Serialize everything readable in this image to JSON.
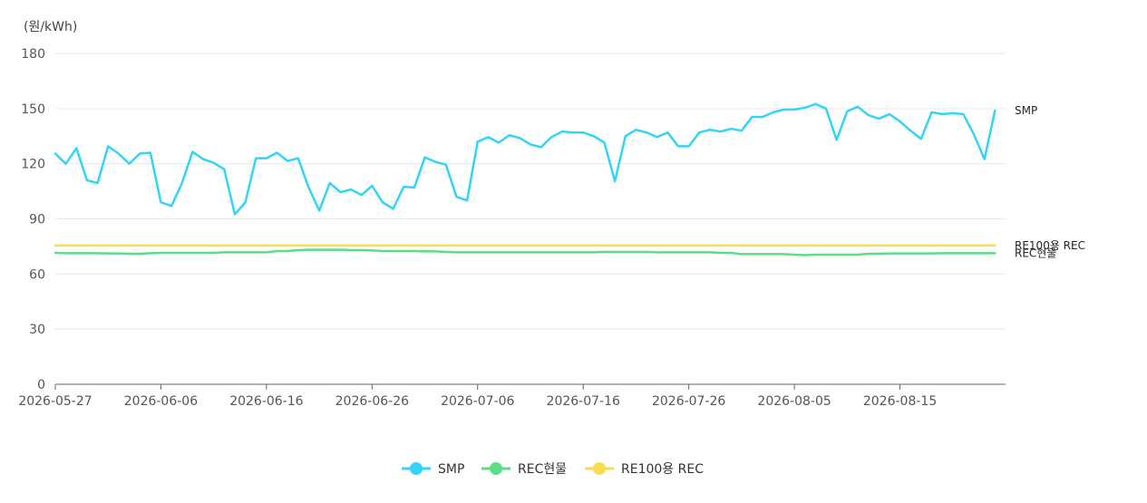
{
  "chart_data": {
    "type": "line",
    "y_unit_label": "(원/kWh)",
    "ylim": [
      0,
      180
    ],
    "y_ticks": [
      0,
      30,
      60,
      90,
      120,
      150,
      180
    ],
    "x_start": "2026-05-27",
    "x_end": "2026-08-25",
    "x_tick_labels": [
      "2026-05-27",
      "2026-06-06",
      "2026-06-16",
      "2026-06-26",
      "2026-07-06",
      "2026-07-16",
      "2026-07-26",
      "2026-08-05",
      "2026-08-15"
    ],
    "grid": "horizontal",
    "legend_position": "bottom",
    "series": [
      {
        "name": "SMP",
        "color": "#33d4f5",
        "end_label": "SMP",
        "values": [
          125.5,
          120,
          128.5,
          111,
          109.5,
          129.5,
          125.5,
          120,
          125.5,
          126,
          99,
          97,
          109.5,
          126.5,
          122.5,
          120.5,
          117,
          92.5,
          99,
          123,
          123,
          126,
          121.5,
          123,
          107,
          94.5,
          109.5,
          104.5,
          106,
          103,
          108,
          99,
          95.5,
          107.5,
          107,
          123.5,
          121,
          119.5,
          102,
          100,
          132,
          134.5,
          131.5,
          135.5,
          134,
          130.5,
          129,
          134.5,
          137.5,
          137,
          137,
          135,
          131.5,
          110.5,
          135,
          138.5,
          137,
          134.5,
          137,
          129.5,
          129.5,
          137,
          138.5,
          137.5,
          139,
          138,
          145.5,
          145.5,
          148,
          149.5,
          149.5,
          150.5,
          152.5,
          150,
          133,
          148.5,
          151,
          146.5,
          144.5,
          147,
          143,
          138,
          133.5,
          148,
          147,
          147.5,
          147,
          136,
          122.5,
          149
        ]
      },
      {
        "name": "REC현물",
        "color": "#5ddd84",
        "end_label": "REC현물",
        "values": [
          71.5,
          71.3,
          71.3,
          71.3,
          71.3,
          71.2,
          71.2,
          71,
          71,
          71.3,
          71.5,
          71.5,
          71.5,
          71.5,
          71.5,
          71.5,
          71.8,
          71.8,
          71.8,
          71.8,
          71.8,
          72.5,
          72.5,
          73,
          73.2,
          73.2,
          73.2,
          73.2,
          73,
          73,
          72.8,
          72.5,
          72.5,
          72.5,
          72.5,
          72.3,
          72.3,
          72,
          71.8,
          71.8,
          71.8,
          71.8,
          71.8,
          71.8,
          71.8,
          71.8,
          71.8,
          71.8,
          71.8,
          71.8,
          71.8,
          71.8,
          72,
          72,
          72,
          72,
          72,
          71.8,
          71.8,
          71.8,
          71.8,
          71.8,
          71.8,
          71.5,
          71.5,
          70.8,
          70.8,
          70.8,
          70.8,
          70.8,
          70.5,
          70.3,
          70.5,
          70.5,
          70.5,
          70.5,
          70.5,
          71,
          71,
          71.2,
          71.2,
          71.2,
          71.2,
          71.2,
          71.3,
          71.3,
          71.3,
          71.3,
          71.3,
          71.3
        ]
      },
      {
        "name": "RE100용 REC",
        "color": "#f8dc54",
        "end_label": "RE100용 REC",
        "values": [
          75.5,
          75.5,
          75.5,
          75.5,
          75.5,
          75.5,
          75.5,
          75.5,
          75.5,
          75.5,
          75.5,
          75.5,
          75.5,
          75.5,
          75.5,
          75.5,
          75.5,
          75.5,
          75.5,
          75.5,
          75.5,
          75.5,
          75.5,
          75.5,
          75.5,
          75.5,
          75.5,
          75.5,
          75.5,
          75.5,
          75.5,
          75.5,
          75.5,
          75.5,
          75.5,
          75.5,
          75.5,
          75.5,
          75.5,
          75.5,
          75.5,
          75.5,
          75.5,
          75.5,
          75.5,
          75.5,
          75.5,
          75.5,
          75.5,
          75.5,
          75.5,
          75.5,
          75.5,
          75.5,
          75.5,
          75.5,
          75.5,
          75.5,
          75.5,
          75.5,
          75.5,
          75.5,
          75.5,
          75.5,
          75.5,
          75.5,
          75.5,
          75.5,
          75.5,
          75.5,
          75.5,
          75.5,
          75.5,
          75.5,
          75.5,
          75.5,
          75.5,
          75.5,
          75.5,
          75.5,
          75.5,
          75.5,
          75.5,
          75.5,
          75.5,
          75.5,
          75.5,
          75.5,
          75.5,
          75.5
        ]
      }
    ]
  }
}
